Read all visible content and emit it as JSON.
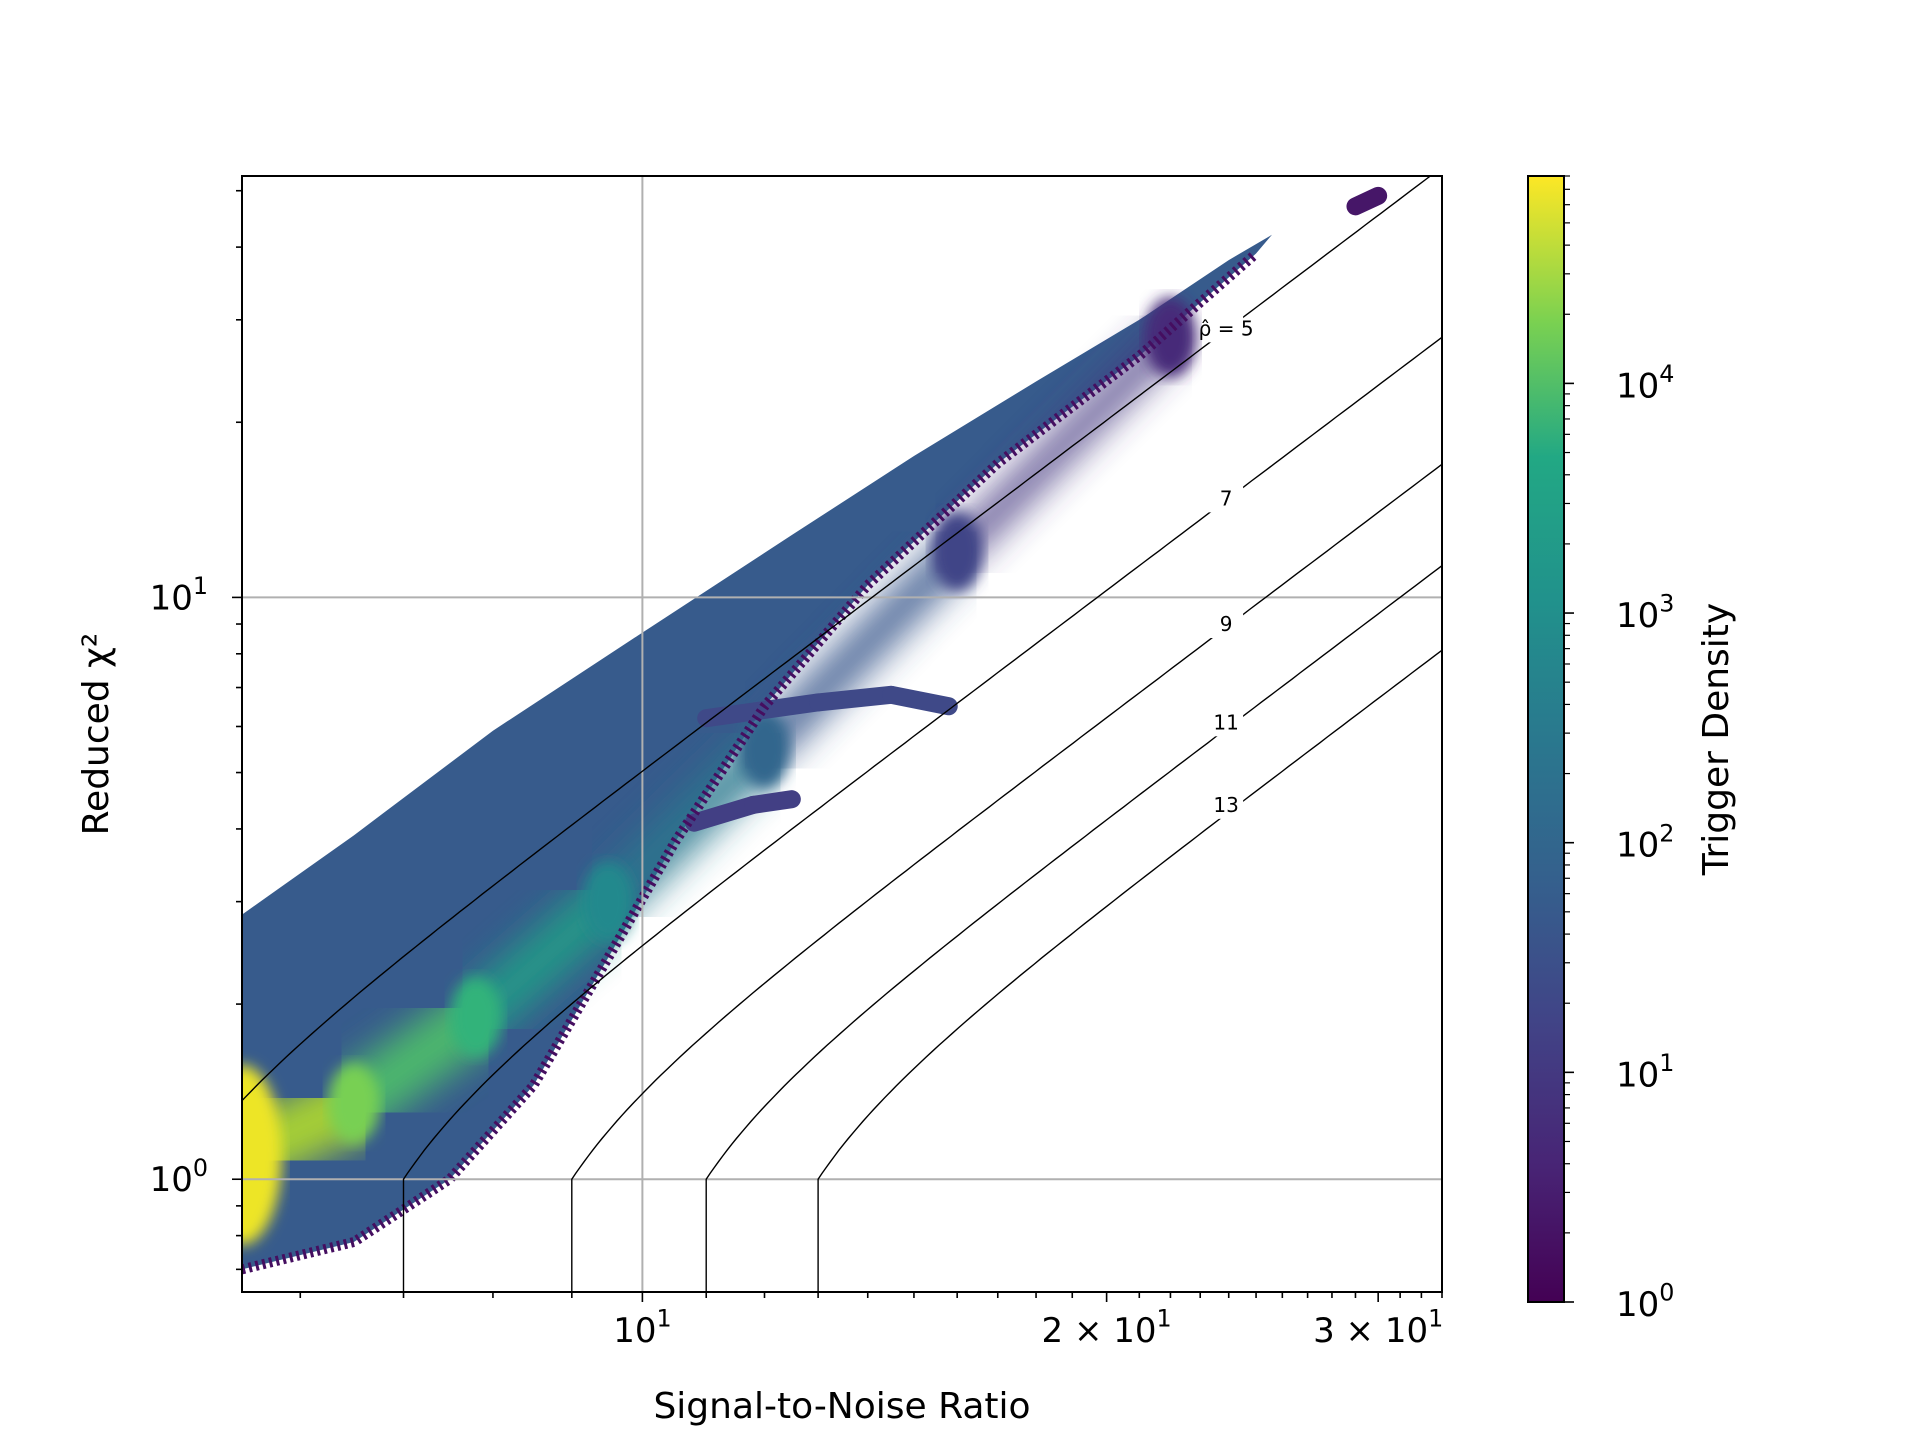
{
  "chart_data": {
    "type": "heatmap",
    "xlabel": "Signal-to-Noise Ratio",
    "ylabel": "Reduced χ²",
    "xscale": "log",
    "yscale": "log",
    "xlim": [
      5.5,
      33
    ],
    "ylim": [
      0.64,
      53
    ],
    "grid": true,
    "x_ticks": [
      {
        "value": 10,
        "base": "10",
        "exp": "1"
      },
      {
        "value": 20,
        "base": "2 × 10",
        "exp": "1"
      },
      {
        "value": 30,
        "base": "3 × 10",
        "exp": "1"
      }
    ],
    "y_ticks": [
      {
        "value": 1,
        "base": "10",
        "exp": "0"
      },
      {
        "value": 10,
        "base": "10",
        "exp": "1"
      }
    ],
    "colorbar": {
      "label": "Trigger Density",
      "scale": "log",
      "range": [
        1,
        80000
      ],
      "colormap": "viridis",
      "ticks": [
        {
          "value": 1,
          "base": "10",
          "exp": "0"
        },
        {
          "value": 10,
          "base": "10",
          "exp": "1"
        },
        {
          "value": 100,
          "base": "10",
          "exp": "2"
        },
        {
          "value": 1000,
          "base": "10",
          "exp": "3"
        },
        {
          "value": 10000,
          "base": "10",
          "exp": "4"
        }
      ]
    },
    "contours": [
      {
        "rho": 5,
        "label": "ρ̂ = 5",
        "label_at": [
          23.8,
          29
        ]
      },
      {
        "rho": 7,
        "label": "7",
        "label_at": [
          23.8,
          14.8
        ]
      },
      {
        "rho": 9,
        "label": "9",
        "label_at": [
          23.8,
          9
        ]
      },
      {
        "rho": 11,
        "label": "11",
        "label_at": [
          23.8,
          6.1
        ]
      },
      {
        "rho": 13,
        "label": "13",
        "label_at": [
          23.8,
          4.4
        ]
      }
    ],
    "density_regions": [
      {
        "name": "main-band",
        "lower": [
          [
            5.5,
            0.7
          ],
          [
            6.5,
            0.78
          ],
          [
            7.5,
            1.0
          ],
          [
            8.5,
            1.45
          ],
          [
            9.5,
            2.4
          ],
          [
            10.5,
            3.8
          ],
          [
            12,
            6.5
          ],
          [
            14,
            10.5
          ],
          [
            17,
            17
          ],
          [
            21,
            26
          ],
          [
            25,
            39
          ]
        ],
        "upper": [
          [
            5.5,
            2.85
          ],
          [
            6.5,
            3.9
          ],
          [
            8,
            5.9
          ],
          [
            10,
            8.7
          ],
          [
            12.5,
            12.8
          ],
          [
            15,
            17.5
          ],
          [
            18,
            23.5
          ],
          [
            21,
            30
          ],
          [
            24,
            38
          ],
          [
            25.6,
            42
          ]
        ],
        "peak": [
          [
            5.5,
            1.1,
            60000
          ],
          [
            6.5,
            1.35,
            8000
          ],
          [
            7.8,
            1.9,
            1500
          ],
          [
            9.5,
            3.0,
            200
          ],
          [
            12,
            5.5,
            40
          ],
          [
            16,
            12,
            10
          ],
          [
            22,
            28,
            4
          ]
        ]
      },
      {
        "name": "glitch-branch-1",
        "points": [
          [
            11,
            6.2
          ],
          [
            13,
            6.6
          ],
          [
            14.5,
            6.8
          ],
          [
            15.8,
            6.5
          ]
        ],
        "density": 12
      },
      {
        "name": "glitch-branch-2",
        "points": [
          [
            10.8,
            4.1
          ],
          [
            11.8,
            4.4
          ],
          [
            12.5,
            4.5
          ]
        ],
        "density": 8
      },
      {
        "name": "outlier-cluster",
        "points": [
          [
            29,
            47
          ],
          [
            30,
            49
          ]
        ],
        "density": 2
      }
    ]
  }
}
